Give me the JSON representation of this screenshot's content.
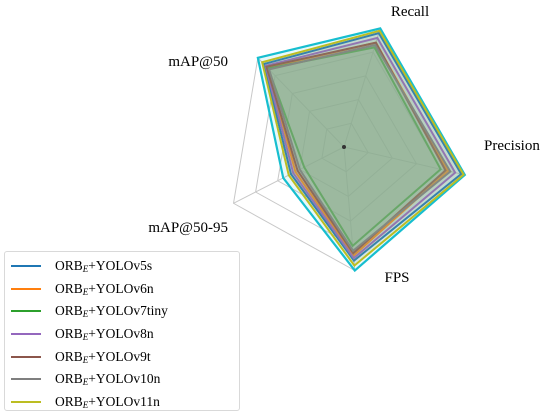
{
  "chart_data": {
    "type": "radar",
    "axes": [
      "Recall",
      "Precision",
      "FPS",
      "mAP@50-95",
      "mAP@50"
    ],
    "levels": 5,
    "range": [
      0,
      1
    ],
    "legend_position": "bottom-left",
    "series": [
      {
        "name": "ORBE+YOLOv5s",
        "name_base": "ORB",
        "name_sub": "E",
        "name_rest": "+YOLOv5s",
        "color": "#1f77b4",
        "values": [
          0.96,
          0.97,
          0.92,
          0.48,
          0.93
        ]
      },
      {
        "name": "ORBE+YOLOv6n",
        "name_base": "ORB",
        "name_sub": "E",
        "name_rest": "+YOLOv6n",
        "color": "#ff7f0e",
        "values": [
          0.88,
          0.86,
          0.88,
          0.44,
          0.89
        ]
      },
      {
        "name": "ORBE+YOLOv7tiny",
        "name_base": "ORB",
        "name_sub": "E",
        "name_rest": "+YOLOv7tiny",
        "color": "#2ca02c",
        "values": [
          0.84,
          0.8,
          0.8,
          0.36,
          0.88
        ]
      },
      {
        "name": "ORBE+YOLOv8n",
        "name_base": "ORB",
        "name_sub": "E",
        "name_rest": "+YOLOv8n",
        "color": "#9467bd",
        "values": [
          0.92,
          0.92,
          0.9,
          0.46,
          0.91
        ]
      },
      {
        "name": "ORBE+YOLOv9t",
        "name_base": "ORB",
        "name_sub": "E",
        "name_rest": "+YOLOv9t",
        "color": "#8c564b",
        "values": [
          0.88,
          0.84,
          0.86,
          0.42,
          0.9
        ]
      },
      {
        "name": "ORBE+YOLOv10n",
        "name_base": "ORB",
        "name_sub": "E",
        "name_rest": "+YOLOv10n",
        "color": "#7f7f7f",
        "values": [
          0.86,
          0.88,
          0.84,
          0.4,
          0.87
        ]
      },
      {
        "name": "ORBE+YOLOv11n",
        "name_base": "ORB",
        "name_sub": "E",
        "name_rest": "+YOLOv11n",
        "color": "#bcbd22",
        "values": [
          0.98,
          0.99,
          0.96,
          0.5,
          0.95
        ]
      }
    ],
    "outer_envelope": {
      "color": "#17becf",
      "values": [
        1.0,
        1.0,
        1.0,
        0.55,
        1.0
      ]
    },
    "fill_color": "#8fae8f"
  }
}
